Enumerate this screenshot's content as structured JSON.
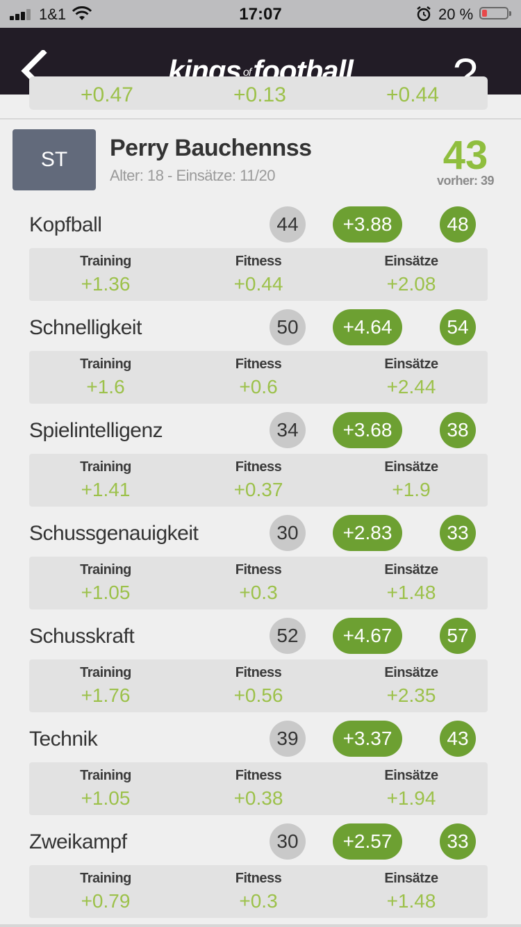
{
  "status_bar": {
    "carrier": "1&1",
    "time": "17:07",
    "battery_percent": "20 %",
    "battery_level": 0.2,
    "battery_color": "#e8484a"
  },
  "nav": {
    "back_icon": "chevron-left-icon",
    "logo_main1": "kings",
    "logo_of": "of",
    "logo_main2": "football",
    "help_label": "?"
  },
  "previous_card": {
    "values": [
      "+0.47",
      "+0.13",
      "+0.44"
    ]
  },
  "player": {
    "position": "ST",
    "name": "Perry Bauchennss",
    "meta": "Alter: 18 - Einsätze: 11/20",
    "total": "43",
    "previous_total": "vorher: 39"
  },
  "column_labels": [
    "Training",
    "Fitness",
    "Einsätze"
  ],
  "attributes": [
    {
      "name": "Kopfball",
      "base": "44",
      "delta": "+3.88",
      "new": "48",
      "training": "+1.36",
      "fitness": "+0.44",
      "einsaetze": "+2.08"
    },
    {
      "name": "Schnelligkeit",
      "base": "50",
      "delta": "+4.64",
      "new": "54",
      "training": "+1.6",
      "fitness": "+0.6",
      "einsaetze": "+2.44"
    },
    {
      "name": "Spielintelligenz",
      "base": "34",
      "delta": "+3.68",
      "new": "38",
      "training": "+1.41",
      "fitness": "+0.37",
      "einsaetze": "+1.9"
    },
    {
      "name": "Schussgenauigkeit",
      "base": "30",
      "delta": "+2.83",
      "new": "33",
      "training": "+1.05",
      "fitness": "+0.3",
      "einsaetze": "+1.48"
    },
    {
      "name": "Schusskraft",
      "base": "52",
      "delta": "+4.67",
      "new": "57",
      "training": "+1.76",
      "fitness": "+0.56",
      "einsaetze": "+2.35"
    },
    {
      "name": "Technik",
      "base": "39",
      "delta": "+3.37",
      "new": "43",
      "training": "+1.05",
      "fitness": "+0.38",
      "einsaetze": "+1.94"
    },
    {
      "name": "Zweikampf",
      "base": "30",
      "delta": "+2.57",
      "new": "33",
      "training": "+0.79",
      "fitness": "+0.3",
      "einsaetze": "+1.48"
    }
  ],
  "colors": {
    "accent_green": "#6da032",
    "value_green": "#9cc14a",
    "nav_bg": "#221c26",
    "badge_bg": "#626a7b"
  }
}
